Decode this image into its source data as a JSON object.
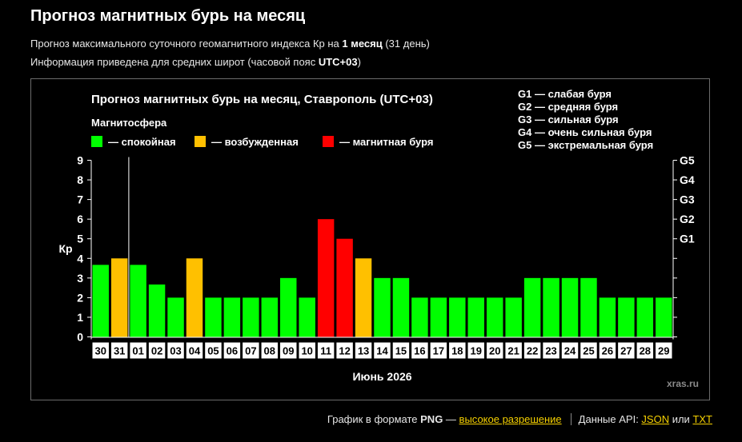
{
  "header": {
    "title": "Прогноз магнитных бурь на месяц",
    "line1_prefix": "Прогноз максимального суточного геомагнитного индекса Кр на ",
    "line1_bold": "1 месяц",
    "line1_suffix": " (31 день)",
    "line2_prefix": "Информация приведена для средних широт (часовой пояс ",
    "line2_bold": "UTC+03",
    "line2_suffix": ")"
  },
  "chart_data": {
    "type": "bar",
    "title": "Прогноз магнитных бурь на месяц, Ставрополь (UTC+03)",
    "legend_title": "Магнитосфера",
    "legend": [
      {
        "key": "calm",
        "label": "— спокойная",
        "color": "#00ff00"
      },
      {
        "key": "excited",
        "label": "— возбужденная",
        "color": "#ffc000"
      },
      {
        "key": "storm",
        "label": "— магнитная буря",
        "color": "#ff0000"
      }
    ],
    "g_legend": [
      "G1 — слабая буря",
      "G2 — средняя буря",
      "G3 — сильная буря",
      "G4 — очень сильная буря",
      "G5 — экстремальная буря"
    ],
    "ylabel": "Кр",
    "xlabel": "Июнь 2026",
    "ylim": [
      0,
      9
    ],
    "yticks": [
      0,
      1,
      2,
      3,
      4,
      5,
      6,
      7,
      8,
      9
    ],
    "right_ticks": [
      {
        "value": 5,
        "label": "G1"
      },
      {
        "value": 6,
        "label": "G2"
      },
      {
        "value": 7,
        "label": "G3"
      },
      {
        "value": 8,
        "label": "G4"
      },
      {
        "value": 9,
        "label": "G5"
      }
    ],
    "categories": [
      "30",
      "31",
      "01",
      "02",
      "03",
      "04",
      "05",
      "06",
      "07",
      "08",
      "09",
      "10",
      "11",
      "12",
      "13",
      "14",
      "15",
      "16",
      "17",
      "18",
      "19",
      "20",
      "21",
      "22",
      "23",
      "24",
      "25",
      "26",
      "27",
      "28",
      "29"
    ],
    "values": [
      3.67,
      4,
      3.67,
      2.67,
      2,
      4,
      2,
      2,
      2,
      2,
      3,
      2,
      6,
      5,
      4,
      3,
      3,
      2,
      2,
      2,
      2,
      2,
      2,
      3,
      3,
      3,
      3,
      2,
      2,
      2,
      2
    ],
    "levels": [
      "calm",
      "excited",
      "calm",
      "calm",
      "calm",
      "excited",
      "calm",
      "calm",
      "calm",
      "calm",
      "calm",
      "calm",
      "storm",
      "storm",
      "excited",
      "calm",
      "calm",
      "calm",
      "calm",
      "calm",
      "calm",
      "calm",
      "calm",
      "calm",
      "calm",
      "calm",
      "calm",
      "calm",
      "calm",
      "calm",
      "calm"
    ],
    "current_day_index": 1,
    "watermark": "xras.ru"
  },
  "footer": {
    "png_text": "График в формате ",
    "png_bold": "PNG",
    "png_dash": " — ",
    "png_link": "высокое разрешение",
    "api_text": "Данные API: ",
    "json_link": "JSON",
    "or_text": " или ",
    "txt_link": "TXT"
  }
}
